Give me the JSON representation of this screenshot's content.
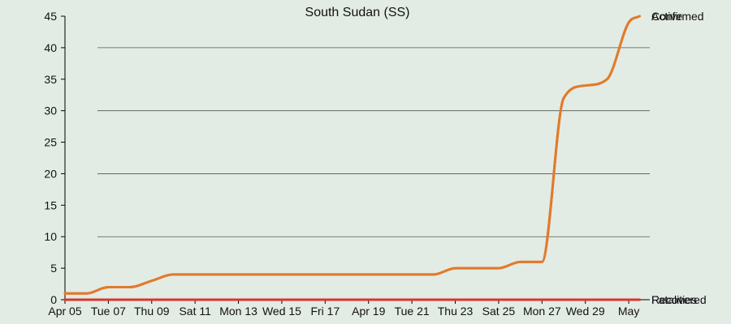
{
  "chart_data": {
    "type": "line",
    "title": "South Sudan (SS)",
    "xlabel": "",
    "ylabel": "",
    "x_tick_labels": [
      "Apr 05",
      "Tue 07",
      "Thu 09",
      "Sat 11",
      "Mon 13",
      "Wed 15",
      "Fri 17",
      "Apr 19",
      "Tue 21",
      "Thu 23",
      "Sat 25",
      "Mon 27",
      "Wed 29",
      "May"
    ],
    "x_tick_days": [
      5,
      7,
      9,
      11,
      13,
      15,
      17,
      19,
      21,
      23,
      25,
      27,
      29,
      31
    ],
    "x_range": [
      5,
      31.97
    ],
    "ylim": [
      0,
      45
    ],
    "y_ticks": [
      0,
      5,
      10,
      15,
      20,
      25,
      30,
      35,
      40,
      45
    ],
    "grid": "horizontal",
    "x": [
      5,
      6,
      7,
      8,
      9,
      10,
      11,
      12,
      13,
      14,
      15,
      16,
      17,
      18,
      19,
      20,
      21,
      22,
      23,
      24,
      25,
      26,
      27,
      28,
      29,
      30,
      31,
      31.5
    ],
    "series": [
      {
        "name": "Confirmed",
        "color": "#e07b2c",
        "values": [
          1,
          1,
          2,
          2,
          3,
          4,
          4,
          4,
          4,
          4,
          4,
          4,
          4,
          4,
          4,
          4,
          4,
          4,
          5,
          5,
          5,
          6,
          6,
          32,
          34,
          35,
          44,
          45
        ]
      },
      {
        "name": "Active",
        "color": "#e07b2c",
        "values": [
          1,
          1,
          2,
          2,
          3,
          4,
          4,
          4,
          4,
          4,
          4,
          4,
          4,
          4,
          4,
          4,
          4,
          4,
          5,
          5,
          5,
          6,
          6,
          32,
          34,
          35,
          44,
          45
        ]
      },
      {
        "name": "Recovered",
        "color": "#d8362b",
        "values": [
          0,
          0,
          0,
          0,
          0,
          0,
          0,
          0,
          0,
          0,
          0,
          0,
          0,
          0,
          0,
          0,
          0,
          0,
          0,
          0,
          0,
          0,
          0,
          0,
          0,
          0,
          0,
          0
        ]
      },
      {
        "name": "Fatalities",
        "color": "#d8362b",
        "values": [
          0,
          0,
          0,
          0,
          0,
          0,
          0,
          0,
          0,
          0,
          0,
          0,
          0,
          0,
          0,
          0,
          0,
          0,
          0,
          0,
          0,
          0,
          0,
          0,
          0,
          0,
          0,
          0
        ]
      }
    ]
  }
}
